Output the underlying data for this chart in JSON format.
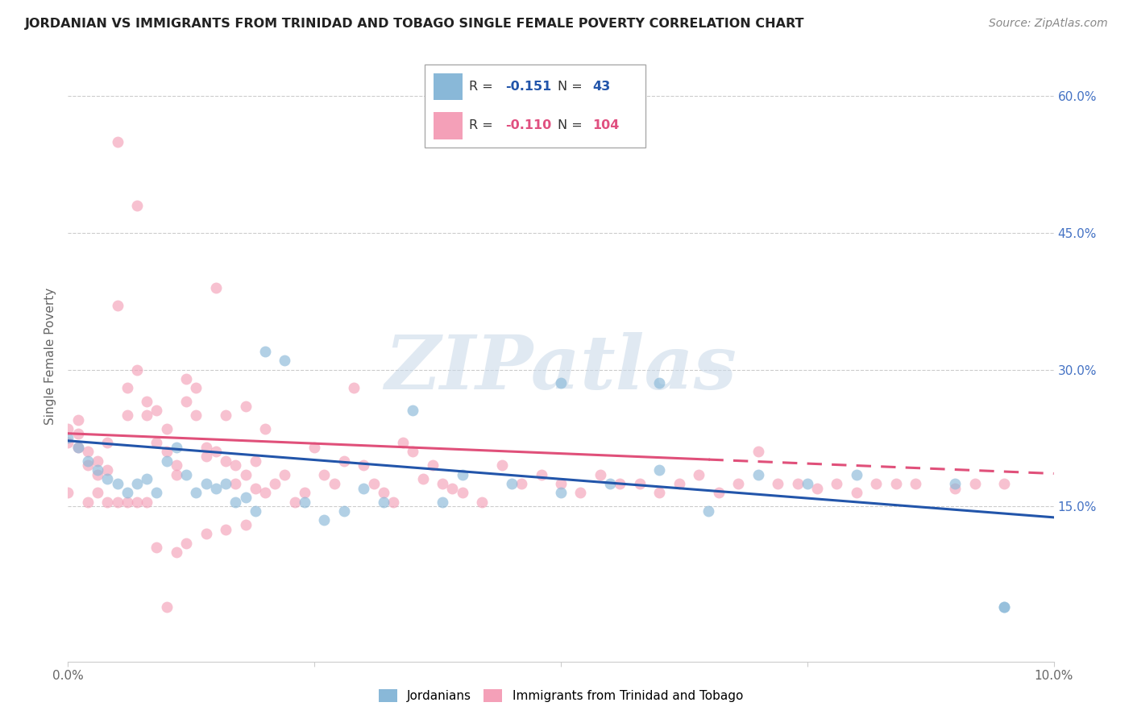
{
  "title": "JORDANIAN VS IMMIGRANTS FROM TRINIDAD AND TOBAGO SINGLE FEMALE POVERTY CORRELATION CHART",
  "source": "Source: ZipAtlas.com",
  "ylabel": "Single Female Poverty",
  "x_min": 0.0,
  "x_max": 0.1,
  "y_min": -0.02,
  "y_max": 0.65,
  "x_ticks": [
    0.0,
    0.025,
    0.05,
    0.075,
    0.1
  ],
  "x_tick_labels": [
    "0.0%",
    "",
    "",
    "",
    "10.0%"
  ],
  "y_ticks_right": [
    0.15,
    0.3,
    0.45,
    0.6
  ],
  "y_tick_labels_right": [
    "15.0%",
    "30.0%",
    "45.0%",
    "60.0%"
  ],
  "blue_color": "#89b8d8",
  "pink_color": "#f4a0b8",
  "blue_line_color": "#2255aa",
  "pink_line_color": "#e0507a",
  "watermark": "ZIPatlas",
  "blue_R": -0.151,
  "blue_N": 43,
  "pink_R": -0.11,
  "pink_N": 104,
  "blue_scatter_x": [
    0.0,
    0.001,
    0.002,
    0.003,
    0.004,
    0.005,
    0.006,
    0.007,
    0.008,
    0.009,
    0.01,
    0.011,
    0.012,
    0.013,
    0.014,
    0.015,
    0.016,
    0.017,
    0.018,
    0.019,
    0.02,
    0.022,
    0.024,
    0.026,
    0.028,
    0.03,
    0.032,
    0.035,
    0.038,
    0.04,
    0.045,
    0.05,
    0.055,
    0.06,
    0.065,
    0.07,
    0.075,
    0.08,
    0.09,
    0.095,
    0.05,
    0.06,
    0.095
  ],
  "blue_scatter_y": [
    0.225,
    0.215,
    0.2,
    0.19,
    0.18,
    0.175,
    0.165,
    0.175,
    0.18,
    0.165,
    0.2,
    0.215,
    0.185,
    0.165,
    0.175,
    0.17,
    0.175,
    0.155,
    0.16,
    0.145,
    0.32,
    0.31,
    0.155,
    0.135,
    0.145,
    0.17,
    0.155,
    0.255,
    0.155,
    0.185,
    0.175,
    0.165,
    0.175,
    0.19,
    0.145,
    0.185,
    0.175,
    0.185,
    0.175,
    0.04,
    0.285,
    0.285,
    0.04
  ],
  "pink_scatter_x": [
    0.0,
    0.0,
    0.001,
    0.001,
    0.002,
    0.002,
    0.003,
    0.003,
    0.004,
    0.004,
    0.005,
    0.005,
    0.006,
    0.006,
    0.007,
    0.007,
    0.008,
    0.008,
    0.009,
    0.009,
    0.01,
    0.01,
    0.011,
    0.011,
    0.012,
    0.012,
    0.013,
    0.013,
    0.014,
    0.014,
    0.015,
    0.015,
    0.016,
    0.016,
    0.017,
    0.017,
    0.018,
    0.018,
    0.019,
    0.019,
    0.02,
    0.02,
    0.021,
    0.022,
    0.023,
    0.024,
    0.025,
    0.026,
    0.027,
    0.028,
    0.029,
    0.03,
    0.031,
    0.032,
    0.033,
    0.034,
    0.035,
    0.036,
    0.037,
    0.038,
    0.039,
    0.04,
    0.042,
    0.044,
    0.046,
    0.048,
    0.05,
    0.052,
    0.054,
    0.056,
    0.058,
    0.06,
    0.062,
    0.064,
    0.066,
    0.068,
    0.07,
    0.072,
    0.074,
    0.076,
    0.078,
    0.08,
    0.082,
    0.084,
    0.086,
    0.09,
    0.092,
    0.095,
    0.0,
    0.001,
    0.002,
    0.003,
    0.004,
    0.005,
    0.006,
    0.007,
    0.008,
    0.009,
    0.01,
    0.011,
    0.012,
    0.014,
    0.016,
    0.018
  ],
  "pink_scatter_y": [
    0.235,
    0.22,
    0.215,
    0.23,
    0.21,
    0.195,
    0.2,
    0.185,
    0.19,
    0.22,
    0.55,
    0.37,
    0.28,
    0.25,
    0.48,
    0.3,
    0.265,
    0.25,
    0.255,
    0.22,
    0.235,
    0.21,
    0.195,
    0.185,
    0.29,
    0.265,
    0.28,
    0.25,
    0.215,
    0.205,
    0.39,
    0.21,
    0.25,
    0.2,
    0.195,
    0.175,
    0.26,
    0.185,
    0.2,
    0.17,
    0.235,
    0.165,
    0.175,
    0.185,
    0.155,
    0.165,
    0.215,
    0.185,
    0.175,
    0.2,
    0.28,
    0.195,
    0.175,
    0.165,
    0.155,
    0.22,
    0.21,
    0.18,
    0.195,
    0.175,
    0.17,
    0.165,
    0.155,
    0.195,
    0.175,
    0.185,
    0.175,
    0.165,
    0.185,
    0.175,
    0.175,
    0.165,
    0.175,
    0.185,
    0.165,
    0.175,
    0.21,
    0.175,
    0.175,
    0.17,
    0.175,
    0.165,
    0.175,
    0.175,
    0.175,
    0.17,
    0.175,
    0.175,
    0.165,
    0.245,
    0.155,
    0.165,
    0.155,
    0.155,
    0.155,
    0.155,
    0.155,
    0.105,
    0.04,
    0.1,
    0.11,
    0.12,
    0.125,
    0.13
  ]
}
